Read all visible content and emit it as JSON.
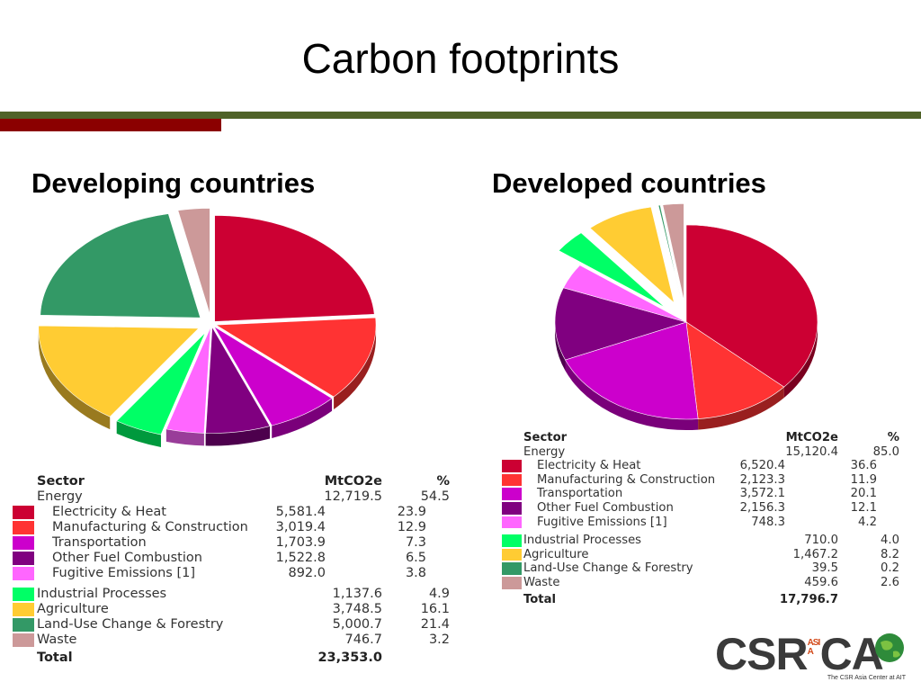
{
  "slide": {
    "title": "Carbon footprints"
  },
  "logo": {
    "text_left": "CSR",
    "text_asia": "ASIA",
    "text_right": "CA",
    "subtitle": "The CSR Asia Center at AIT"
  },
  "chart_data": [
    {
      "type": "pie",
      "title": "Developing countries",
      "table_headers": [
        "Sector",
        "MtCO2e",
        "%"
      ],
      "group": {
        "label": "Energy",
        "value": "12,719.5",
        "pct": "54.5"
      },
      "slices": [
        {
          "label": "Electricity & Heat",
          "value": 5581.4,
          "value_text": "5,581.4",
          "pct": "23.9",
          "color": "#cc0033",
          "sub": true
        },
        {
          "label": "Manufacturing & Construction",
          "value": 3019.4,
          "value_text": "3,019.4",
          "pct": "12.9",
          "color": "#ff3333",
          "sub": true
        },
        {
          "label": "Transportation",
          "value": 1703.9,
          "value_text": "1,703.9",
          "pct": "7.3",
          "color": "#cc00cc",
          "sub": true
        },
        {
          "label": "Other Fuel Combustion",
          "value": 1522.8,
          "value_text": "1,522.8",
          "pct": "6.5",
          "color": "#800080",
          "sub": true
        },
        {
          "label": "Fugitive Emissions [1]",
          "value": 892.0,
          "value_text": "892.0",
          "pct": "3.8",
          "color": "#ff66ff",
          "sub": true
        },
        {
          "label": "Industrial Processes",
          "value": 1137.6,
          "value_text": "1,137.6",
          "pct": "4.9",
          "color": "#00ff66",
          "sub": false
        },
        {
          "label": "Agriculture",
          "value": 3748.5,
          "value_text": "3,748.5",
          "pct": "16.1",
          "color": "#ffcc33",
          "sub": false
        },
        {
          "label": "Land-Use Change & Forestry",
          "value": 5000.7,
          "value_text": "5,000.7",
          "pct": "21.4",
          "color": "#339966",
          "sub": false
        },
        {
          "label": "Waste",
          "value": 746.7,
          "value_text": "746.7",
          "pct": "3.2",
          "color": "#cc9999",
          "sub": false
        }
      ],
      "total": {
        "label": "Total",
        "value": "23,353.0"
      }
    },
    {
      "type": "pie",
      "title": "Developed countries",
      "table_headers": [
        "Sector",
        "MtCO2e",
        "%"
      ],
      "group": {
        "label": "Energy",
        "value": "15,120.4",
        "pct": "85.0"
      },
      "slices": [
        {
          "label": "Electricity & Heat",
          "value": 6520.4,
          "value_text": "6,520.4",
          "pct": "36.6",
          "color": "#cc0033",
          "sub": true
        },
        {
          "label": "Manufacturing & Construction",
          "value": 2123.3,
          "value_text": "2,123.3",
          "pct": "11.9",
          "color": "#ff3333",
          "sub": true
        },
        {
          "label": "Transportation",
          "value": 3572.1,
          "value_text": "3,572.1",
          "pct": "20.1",
          "color": "#cc00cc",
          "sub": true
        },
        {
          "label": "Other Fuel Combustion",
          "value": 2156.3,
          "value_text": "2,156.3",
          "pct": "12.1",
          "color": "#800080",
          "sub": true
        },
        {
          "label": "Fugitive Emissions [1]",
          "value": 748.3,
          "value_text": "748.3",
          "pct": "4.2",
          "color": "#ff66ff",
          "sub": true
        },
        {
          "label": "Industrial Processes",
          "value": 710.0,
          "value_text": "710.0",
          "pct": "4.0",
          "color": "#00ff66",
          "sub": false
        },
        {
          "label": "Agriculture",
          "value": 1467.2,
          "value_text": "1,467.2",
          "pct": "8.2",
          "color": "#ffcc33",
          "sub": false
        },
        {
          "label": "Land-Use Change & Forestry",
          "value": 39.5,
          "value_text": "39.5",
          "pct": "0.2",
          "color": "#339966",
          "sub": false
        },
        {
          "label": "Waste",
          "value": 459.6,
          "value_text": "459.6",
          "pct": "2.6",
          "color": "#cc9999",
          "sub": false
        }
      ],
      "total": {
        "label": "Total",
        "value": "17,796.7"
      }
    }
  ]
}
